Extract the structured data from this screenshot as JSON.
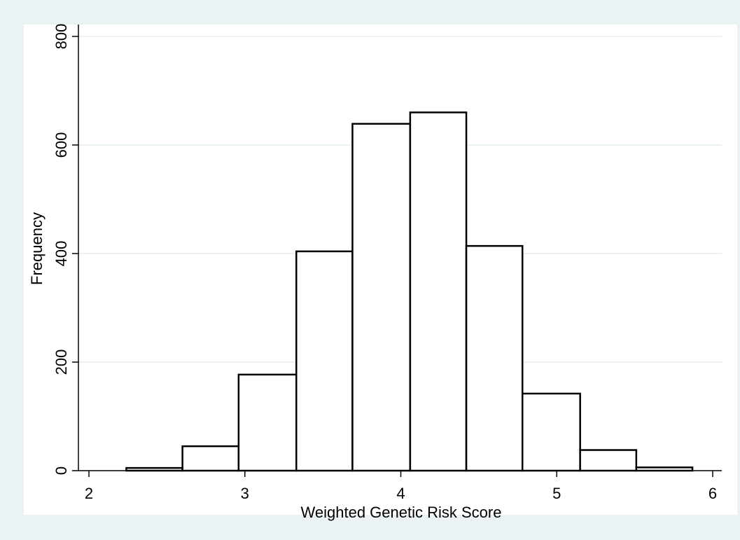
{
  "chart_data": {
    "type": "bar",
    "subtype": "histogram",
    "xlabel": "Weighted Genetic Risk Score",
    "ylabel": "Frequency",
    "xlim": [
      2,
      6
    ],
    "ylim": [
      0,
      800
    ],
    "xticks": [
      2,
      3,
      4,
      5,
      6
    ],
    "yticks": [
      0,
      200,
      400,
      600,
      800
    ],
    "bins": [
      {
        "start": 2.24,
        "end": 2.6,
        "value": 5
      },
      {
        "start": 2.6,
        "end": 2.96,
        "value": 45
      },
      {
        "start": 2.96,
        "end": 3.33,
        "value": 177
      },
      {
        "start": 3.33,
        "end": 3.69,
        "value": 404
      },
      {
        "start": 3.69,
        "end": 4.06,
        "value": 639
      },
      {
        "start": 4.06,
        "end": 4.42,
        "value": 660
      },
      {
        "start": 4.42,
        "end": 4.78,
        "value": 414
      },
      {
        "start": 4.78,
        "end": 5.15,
        "value": 142
      },
      {
        "start": 5.15,
        "end": 5.51,
        "value": 38
      },
      {
        "start": 5.51,
        "end": 5.87,
        "value": 6
      }
    ],
    "grid": true,
    "legend": "none",
    "colors": {
      "outer_background": "#eaf2f3",
      "plot_background": "#ffffff",
      "bar_fill": "#ffffff",
      "bar_stroke": "#000000",
      "grid": "#eaf2f3"
    }
  }
}
